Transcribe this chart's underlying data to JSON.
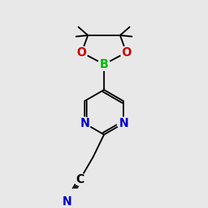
{
  "bg_color": "#e8e8e8",
  "bond_color": "#000000",
  "bond_width": 1.6,
  "atom_colors": {
    "N": "#0000cc",
    "O": "#cc0000",
    "B": "#00bb00"
  },
  "font_size_atom": 12
}
